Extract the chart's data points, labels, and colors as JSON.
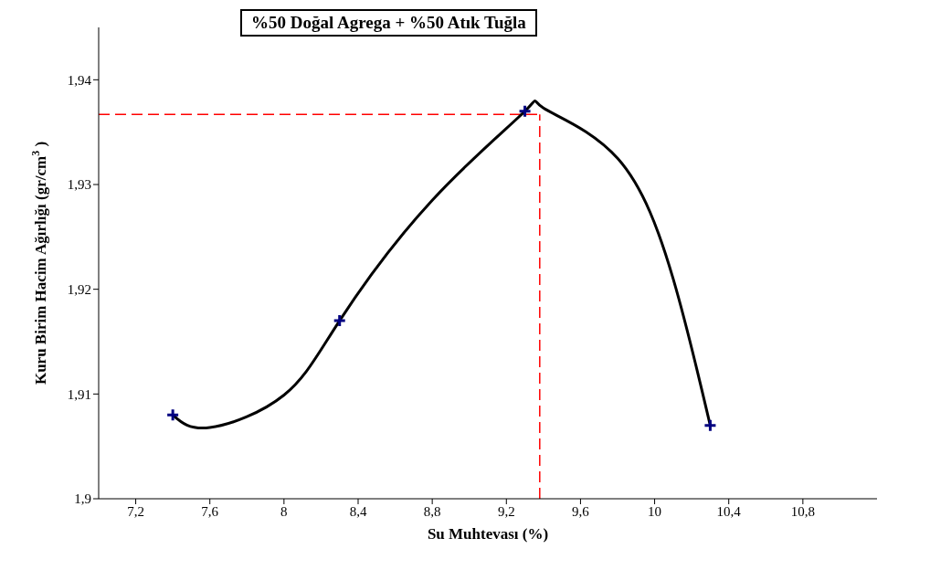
{
  "chart_data": {
    "type": "scatter",
    "title": "%50 Doğal Agrega + %50 Atık Tuğla",
    "xlabel": "Su Muhtevası (%)",
    "ylabel": "Kuru Birim Hacim Ağırlığı (gr/cm$^{3}$)",
    "xlim": [
      7.0,
      11.2
    ],
    "ylim": [
      1.9,
      1.945
    ],
    "xticks": [
      {
        "value": 7.2,
        "label": "7,2"
      },
      {
        "value": 7.6,
        "label": "7,6"
      },
      {
        "value": 8,
        "label": "8"
      },
      {
        "value": 8.4,
        "label": "8,4"
      },
      {
        "value": 8.8,
        "label": "8,8"
      },
      {
        "value": 9.2,
        "label": "9,2"
      },
      {
        "value": 9.6,
        "label": "9,6"
      },
      {
        "value": 10,
        "label": "10"
      },
      {
        "value": 10.4,
        "label": "10,4"
      },
      {
        "value": 10.8,
        "label": "10,8"
      }
    ],
    "yticks": [
      {
        "value": 1.9,
        "label": "1,9"
      },
      {
        "value": 1.91,
        "label": "1,91"
      },
      {
        "value": 1.92,
        "label": "1,92"
      },
      {
        "value": 1.93,
        "label": "1,93"
      },
      {
        "value": 1.94,
        "label": "1,94"
      }
    ],
    "grid": false,
    "legend": false,
    "series": [
      {
        "type": "line",
        "color": "#000000",
        "marker": "none",
        "line_style": "solid",
        "x": [
          7.4,
          7.6,
          8.0,
          8.3,
          8.8,
          9.3,
          9.4,
          9.8,
          10.1,
          10.3
        ],
        "values": [
          1.908,
          1.9068,
          1.9099,
          1.917,
          1.9285,
          1.937,
          1.9373,
          1.9325,
          1.921,
          1.907
        ]
      },
      {
        "color": "#000080",
        "marker": "cross",
        "x": [
          7.4,
          8.3,
          9.3,
          10.3
        ],
        "values": [
          1.908,
          1.917,
          1.937,
          1.907
        ]
      }
    ],
    "ref_lines": [
      {
        "axis": "y",
        "value": 1.9367,
        "color": "#ff0000",
        "line_style": "dashed"
      },
      {
        "axis": "x",
        "value": 9.38,
        "color": "#ff0000",
        "line_style": "dashed"
      }
    ]
  }
}
